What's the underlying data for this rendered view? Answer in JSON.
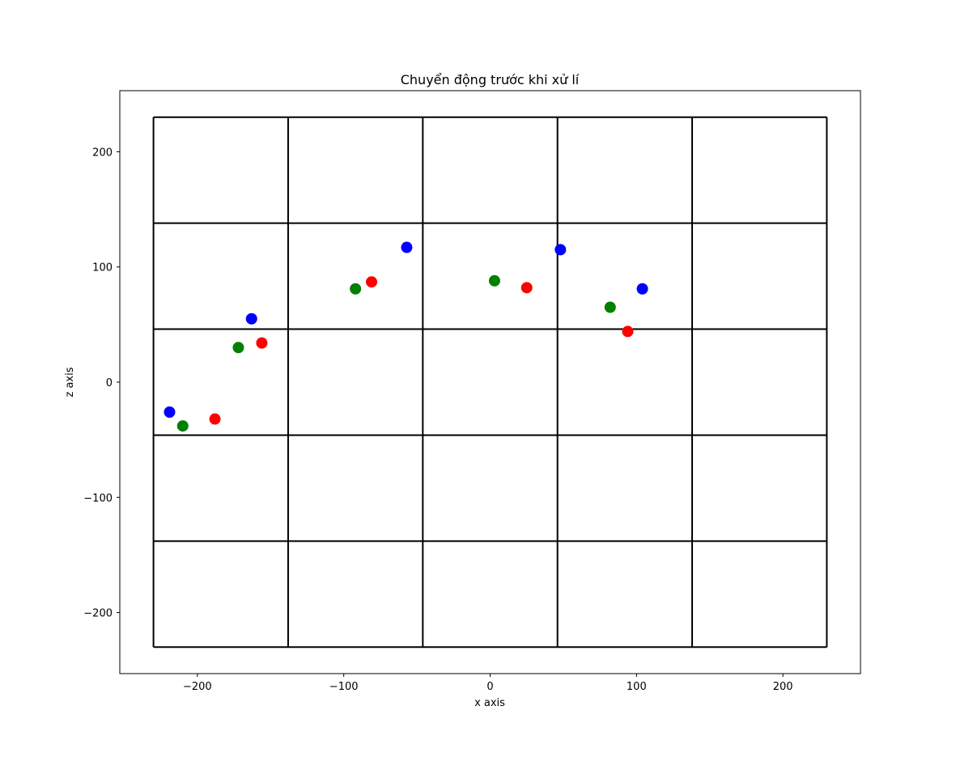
{
  "chart_data": {
    "type": "scatter",
    "title": "Chuyển động trước khi xử lí",
    "xlabel": "x axis",
    "ylabel": "z axis",
    "xlim": [
      -253,
      253
    ],
    "ylim": [
      -253,
      253
    ],
    "x_ticks": [
      -200,
      -100,
      0,
      100,
      200
    ],
    "y_ticks": [
      -200,
      -100,
      0,
      100,
      200
    ],
    "grid": {
      "vertical_lines": [
        -230,
        -138,
        -46,
        46,
        138,
        230
      ],
      "horizontal_lines": [
        -230,
        -138,
        -46,
        46,
        138,
        230
      ],
      "color": "#000000"
    },
    "series": [
      {
        "color": "#0000ff",
        "points": [
          {
            "x": -219,
            "y": -26
          },
          {
            "x": -163,
            "y": 55
          },
          {
            "x": -57,
            "y": 117
          },
          {
            "x": 48,
            "y": 115
          },
          {
            "x": 104,
            "y": 81
          }
        ]
      },
      {
        "color": "#008000",
        "points": [
          {
            "x": -210,
            "y": -38
          },
          {
            "x": -172,
            "y": 30
          },
          {
            "x": -92,
            "y": 81
          },
          {
            "x": 3,
            "y": 88
          },
          {
            "x": 82,
            "y": 65
          }
        ]
      },
      {
        "color": "#ff0000",
        "points": [
          {
            "x": -188,
            "y": -32
          },
          {
            "x": -156,
            "y": 34
          },
          {
            "x": -81,
            "y": 87
          },
          {
            "x": 25,
            "y": 82
          },
          {
            "x": 94,
            "y": 44
          }
        ]
      }
    ]
  }
}
